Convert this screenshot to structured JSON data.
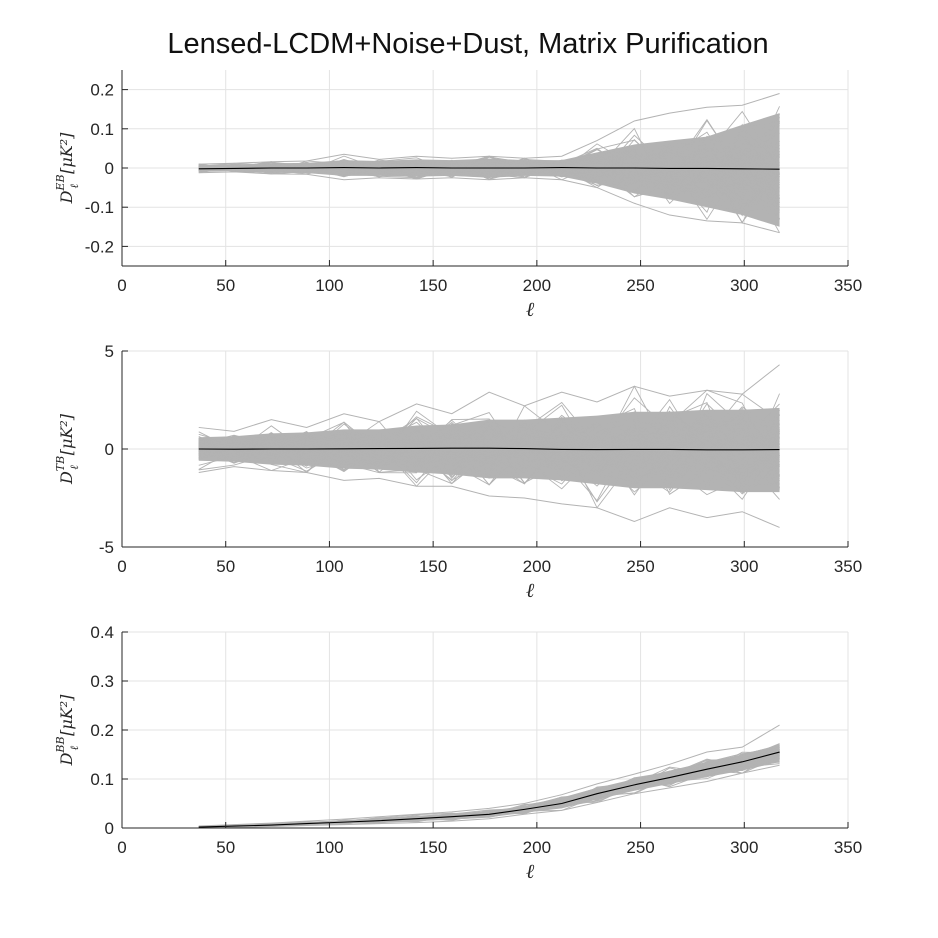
{
  "figure": {
    "title": "Lensed-LCDM+Noise+Dust, Matrix Purification"
  },
  "colors": {
    "realizations": "#b3b3b3",
    "mean": "#000000",
    "grid": "#e3e3e3",
    "axis": "#262626"
  },
  "chart_data": [
    {
      "type": "line",
      "id": "eb",
      "ylabel": {
        "main": "D",
        "sub": "ℓ",
        "sup": "EB",
        "units": "[μK²]"
      },
      "xlabel": "ℓ",
      "xlim": [
        0,
        350
      ],
      "ylim": [
        -0.25,
        0.25
      ],
      "xticks": [
        0,
        50,
        100,
        150,
        200,
        250,
        300,
        350
      ],
      "yticks": [
        -0.2,
        -0.1,
        0,
        0.1,
        0.2
      ],
      "ytick_labels": [
        "-0.2",
        "-0.1",
        "0",
        "0.1",
        "0.2"
      ],
      "grid": true,
      "x": [
        37,
        54,
        72,
        89,
        107,
        124,
        142,
        159,
        177,
        194,
        212,
        229,
        247,
        264,
        282,
        299,
        317
      ],
      "series": [
        {
          "role": "mean",
          "values": [
            -0.002,
            -0.001,
            0.0,
            0.0,
            0.001,
            0.0,
            0.001,
            0.0,
            0.0,
            0.0,
            0.001,
            0.0,
            0.0,
            -0.001,
            -0.001,
            -0.002,
            -0.003
          ]
        }
      ],
      "spread": {
        "upper": [
          0.008,
          0.008,
          0.012,
          0.013,
          0.02,
          0.018,
          0.022,
          0.02,
          0.024,
          0.02,
          0.02,
          0.04,
          0.06,
          0.07,
          0.08,
          0.11,
          0.14
        ],
        "lower": [
          -0.008,
          -0.008,
          -0.012,
          -0.013,
          -0.02,
          -0.02,
          -0.022,
          -0.02,
          -0.025,
          -0.02,
          -0.022,
          -0.04,
          -0.065,
          -0.08,
          -0.1,
          -0.12,
          -0.15
        ],
        "extreme_max": [
          0.01,
          0.012,
          0.016,
          0.018,
          0.035,
          0.022,
          0.03,
          0.025,
          0.03,
          0.025,
          0.03,
          0.07,
          0.12,
          0.14,
          0.155,
          0.16,
          0.19
        ],
        "extreme_min": [
          -0.012,
          -0.01,
          -0.015,
          -0.016,
          -0.03,
          -0.025,
          -0.028,
          -0.025,
          -0.03,
          -0.025,
          -0.03,
          -0.05,
          -0.09,
          -0.12,
          -0.135,
          -0.14,
          -0.165
        ]
      }
    },
    {
      "type": "line",
      "id": "tb",
      "ylabel": {
        "main": "D",
        "sub": "ℓ",
        "sup": "TB",
        "units": "[μK²]"
      },
      "xlabel": "ℓ",
      "xlim": [
        0,
        350
      ],
      "ylim": [
        -5,
        5
      ],
      "xticks": [
        0,
        50,
        100,
        150,
        200,
        250,
        300,
        350
      ],
      "yticks": [
        -5,
        0,
        5
      ],
      "ytick_labels": [
        "-5",
        "0",
        "5"
      ],
      "grid": true,
      "x": [
        37,
        54,
        72,
        89,
        107,
        124,
        142,
        159,
        177,
        194,
        212,
        229,
        247,
        264,
        282,
        299,
        317
      ],
      "series": [
        {
          "role": "mean",
          "values": [
            0.0,
            -0.01,
            0.0,
            0.0,
            0.01,
            0.02,
            0.03,
            0.04,
            0.04,
            0.02,
            -0.02,
            -0.03,
            -0.02,
            -0.02,
            -0.04,
            -0.04,
            -0.03
          ]
        }
      ],
      "spread": {
        "upper": [
          0.6,
          0.65,
          0.8,
          0.85,
          1.0,
          1.0,
          1.2,
          1.25,
          1.5,
          1.5,
          1.6,
          1.7,
          1.9,
          1.9,
          2.0,
          2.0,
          2.1
        ],
        "lower": [
          -0.6,
          -0.65,
          -0.8,
          -0.85,
          -1.0,
          -1.05,
          -1.2,
          -1.3,
          -1.5,
          -1.5,
          -1.6,
          -1.8,
          -2.0,
          -2.0,
          -2.1,
          -2.2,
          -2.2
        ],
        "extreme_max": [
          1.1,
          0.9,
          1.5,
          1.1,
          1.8,
          1.4,
          2.3,
          1.8,
          2.9,
          2.2,
          2.9,
          2.4,
          3.2,
          2.7,
          3.0,
          2.8,
          4.3
        ],
        "extreme_min": [
          -1.2,
          -0.9,
          -1.1,
          -1.2,
          -1.6,
          -1.5,
          -1.9,
          -1.9,
          -2.4,
          -2.5,
          -2.8,
          -3.0,
          -3.7,
          -3.0,
          -3.5,
          -3.2,
          -4.0
        ]
      }
    },
    {
      "type": "line",
      "id": "bb",
      "ylabel": {
        "main": "D",
        "sub": "ℓ",
        "sup": "BB",
        "units": "[μK²]"
      },
      "xlabel": "ℓ",
      "xlim": [
        0,
        350
      ],
      "ylim": [
        0,
        0.4
      ],
      "xticks": [
        0,
        50,
        100,
        150,
        200,
        250,
        300,
        350
      ],
      "yticks": [
        0,
        0.1,
        0.2,
        0.3,
        0.4
      ],
      "ytick_labels": [
        "0",
        "0.1",
        "0.2",
        "0.3",
        "0.4"
      ],
      "grid": true,
      "x": [
        37,
        54,
        72,
        89,
        107,
        124,
        142,
        159,
        177,
        194,
        212,
        229,
        247,
        264,
        282,
        299,
        317
      ],
      "series": [
        {
          "role": "mean",
          "values": [
            0.002,
            0.004,
            0.006,
            0.009,
            0.012,
            0.015,
            0.019,
            0.023,
            0.028,
            0.038,
            0.05,
            0.07,
            0.088,
            0.103,
            0.12,
            0.135,
            0.155
          ]
        }
      ],
      "spread": {
        "upper": [
          0.003,
          0.006,
          0.008,
          0.012,
          0.016,
          0.02,
          0.025,
          0.029,
          0.035,
          0.045,
          0.062,
          0.082,
          0.1,
          0.117,
          0.135,
          0.15,
          0.17
        ],
        "lower": [
          0.001,
          0.002,
          0.004,
          0.006,
          0.009,
          0.011,
          0.014,
          0.017,
          0.022,
          0.031,
          0.04,
          0.058,
          0.076,
          0.09,
          0.104,
          0.117,
          0.135
        ],
        "extreme_max": [
          0.004,
          0.007,
          0.01,
          0.014,
          0.018,
          0.023,
          0.028,
          0.033,
          0.04,
          0.05,
          0.068,
          0.09,
          0.11,
          0.13,
          0.155,
          0.165,
          0.21
        ],
        "extreme_min": [
          0.0,
          0.001,
          0.003,
          0.005,
          0.007,
          0.009,
          0.011,
          0.014,
          0.019,
          0.028,
          0.036,
          0.052,
          0.07,
          0.082,
          0.095,
          0.112,
          0.128
        ]
      }
    }
  ]
}
